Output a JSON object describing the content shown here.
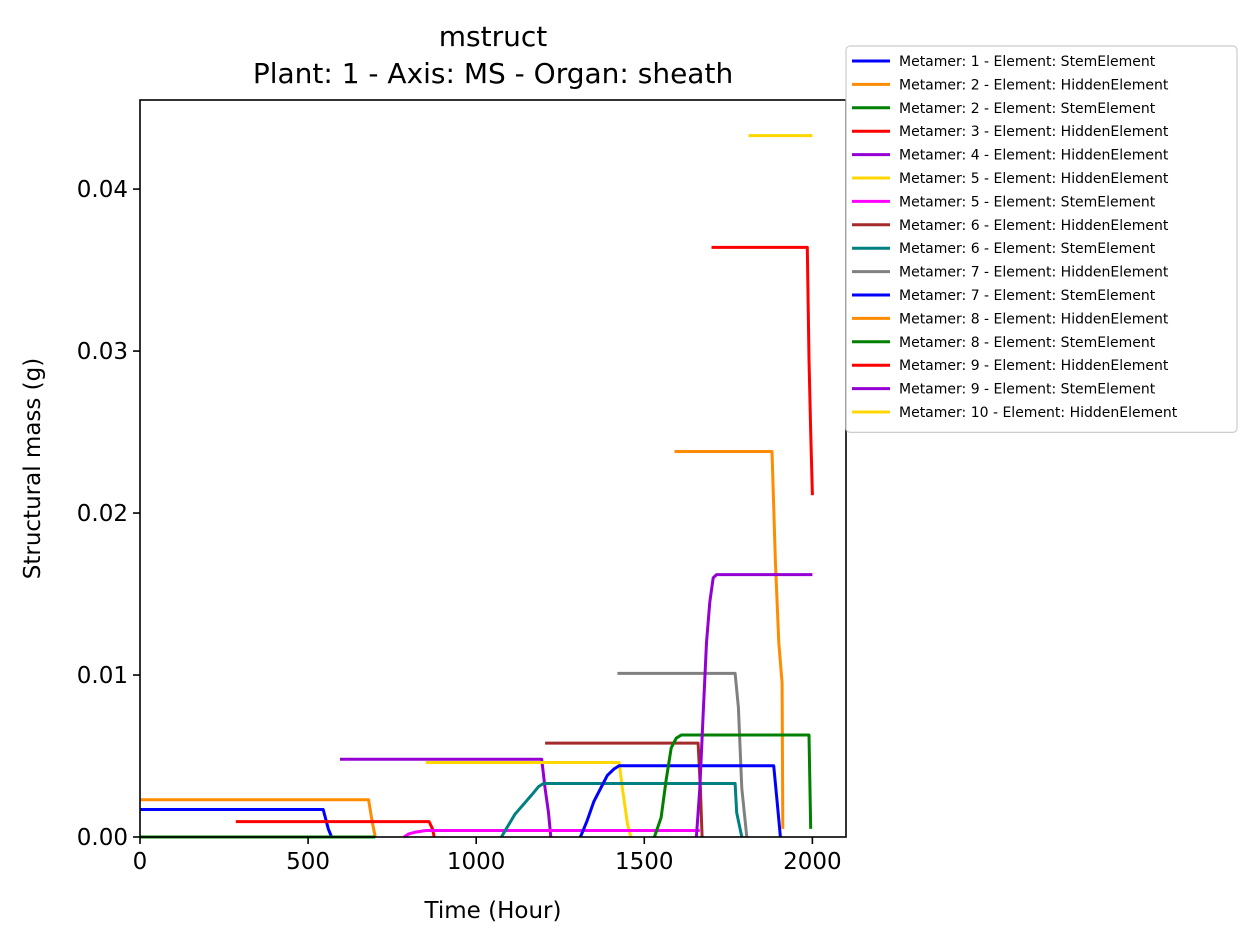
{
  "chart_data": {
    "type": "line",
    "title": "mstruct",
    "subtitle": "Plant: 1 - Axis: MS - Organ: sheath",
    "xlabel": "Time (Hour)",
    "ylabel": "Structural mass (g)",
    "xlim": [
      0,
      2100
    ],
    "ylim": [
      0,
      0.0455
    ],
    "xticks": [
      0,
      500,
      1000,
      1500,
      2000
    ],
    "xtick_labels": [
      "0",
      "500",
      "1000",
      "1500",
      "2000"
    ],
    "yticks": [
      0,
      0.01,
      0.02,
      0.03,
      0.04
    ],
    "ytick_labels": [
      "0.00",
      "0.01",
      "0.02",
      "0.03",
      "0.04"
    ],
    "grid": false,
    "legend_position": "outside-top-right",
    "series": [
      {
        "name": "Metamer: 1 - Element: StemElement",
        "color": "#0000ff",
        "x": [
          0,
          545,
          560,
          570
        ],
        "y": [
          0.0017,
          0.0017,
          0.0005,
          0
        ]
      },
      {
        "name": "Metamer: 2 - Element: HiddenElement",
        "color": "#ff8c00",
        "x": [
          0,
          680,
          690,
          700
        ],
        "y": [
          0.0023,
          0.0023,
          0.001,
          0
        ]
      },
      {
        "name": "Metamer: 2 - Element: StemElement",
        "color": "#008000",
        "x": [
          0,
          700
        ],
        "y": [
          0,
          0
        ]
      },
      {
        "name": "Metamer: 3 - Element: HiddenElement",
        "color": "#ff0000",
        "x": [
          285,
          860,
          870,
          875
        ],
        "y": [
          0.00095,
          0.00095,
          0.0005,
          0
        ]
      },
      {
        "name": "Metamer: 4 - Element: HiddenElement",
        "color": "#9400d3",
        "x": [
          595,
          1195,
          1205,
          1215,
          1222
        ],
        "y": [
          0.0048,
          0.0048,
          0.003,
          0.0015,
          0
        ]
      },
      {
        "name": "Metamer: 5 - Element: HiddenElement",
        "color": "#ffd700",
        "x": [
          850,
          1425,
          1435,
          1450,
          1460
        ],
        "y": [
          0.0046,
          0.0046,
          0.003,
          0.0008,
          0
        ]
      },
      {
        "name": "Metamer: 5 - Element: StemElement",
        "color": "#ff00ff",
        "x": [
          785,
          800,
          820,
          850,
          1665
        ],
        "y": [
          0,
          0.0002,
          0.0003,
          0.0004,
          0.0004
        ]
      },
      {
        "name": "Metamer: 6 - Element: HiddenElement",
        "color": "#a52a2a",
        "x": [
          1205,
          1660,
          1667,
          1672
        ],
        "y": [
          0.0058,
          0.0058,
          0.003,
          0
        ]
      },
      {
        "name": "Metamer: 6 - Element: StemElement",
        "color": "#008080",
        "x": [
          1075,
          1095,
          1115,
          1140,
          1165,
          1185,
          1200,
          1220,
          1770,
          1775,
          1790
        ],
        "y": [
          0,
          0.0007,
          0.0014,
          0.002,
          0.0026,
          0.0031,
          0.0033,
          0.0033,
          0.0033,
          0.0015,
          0
        ]
      },
      {
        "name": "Metamer: 7 - Element: HiddenElement",
        "color": "#808080",
        "x": [
          1420,
          1770,
          1780,
          1790,
          1805
        ],
        "y": [
          0.0101,
          0.0101,
          0.008,
          0.003,
          0
        ]
      },
      {
        "name": "Metamer: 7 - Element: StemElement",
        "color": "#0000ff",
        "x": [
          1310,
          1330,
          1350,
          1370,
          1390,
          1410,
          1425,
          1885,
          1895,
          1905
        ],
        "y": [
          0,
          0.001,
          0.0022,
          0.003,
          0.0038,
          0.0042,
          0.0044,
          0.0044,
          0.0022,
          0
        ]
      },
      {
        "name": "Metamer: 8 - Element: HiddenElement",
        "color": "#ff8c00",
        "x": [
          1590,
          1880,
          1890,
          1900,
          1910,
          1912
        ],
        "y": [
          0.0238,
          0.0238,
          0.017,
          0.012,
          0.0095,
          0.0005
        ]
      },
      {
        "name": "Metamer: 8 - Element: StemElement",
        "color": "#008000",
        "x": [
          1530,
          1550,
          1565,
          1580,
          1595,
          1610,
          1990,
          1995
        ],
        "y": [
          0,
          0.0012,
          0.0035,
          0.0055,
          0.0061,
          0.0063,
          0.0063,
          0.0005
        ]
      },
      {
        "name": "Metamer: 9 - Element: HiddenElement",
        "color": "#ff0000",
        "x": [
          1700,
          1985,
          1990,
          1995,
          2000
        ],
        "y": [
          0.0364,
          0.0364,
          0.0295,
          0.025,
          0.0211
        ]
      },
      {
        "name": "Metamer: 9 - Element: StemElement",
        "color": "#9400d3",
        "x": [
          1655,
          1665,
          1675,
          1685,
          1695,
          1705,
          1715,
          2000
        ],
        "y": [
          0,
          0.003,
          0.0075,
          0.012,
          0.0145,
          0.016,
          0.0162,
          0.0162
        ]
      },
      {
        "name": "Metamer: 10 - Element: HiddenElement",
        "color": "#ffd700",
        "x": [
          1810,
          2000
        ],
        "y": [
          0.0433,
          0.0433
        ]
      }
    ]
  }
}
